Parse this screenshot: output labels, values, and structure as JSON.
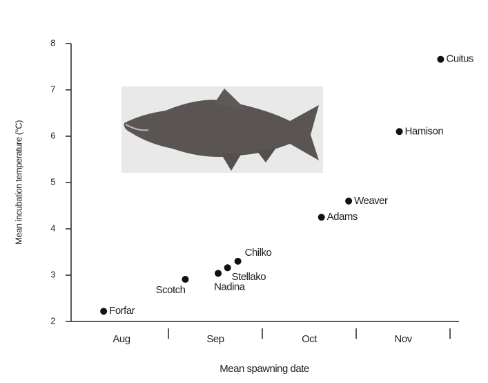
{
  "chart_data": {
    "type": "scatter",
    "xlabel": "Mean spawning date",
    "ylabel": "Mean incubation temperature (°C)",
    "categories": [
      "Aug",
      "Sep",
      "Oct",
      "Nov"
    ],
    "xlim": [
      0,
      4
    ],
    "ylim": [
      2,
      8
    ],
    "yticks": [
      2,
      3,
      4,
      5,
      6,
      7,
      8
    ],
    "color": "#111111",
    "labels": [
      "Forfar",
      "Scotch",
      "Nadina",
      "Stellako",
      "Chilko",
      "Adams",
      "Weaver",
      "Hamison",
      "Cuitus"
    ],
    "x": [
      0.31,
      1.18,
      1.53,
      1.63,
      1.74,
      2.63,
      2.92,
      3.46,
      3.9
    ],
    "y": [
      2.22,
      2.91,
      3.04,
      3.16,
      3.3,
      4.25,
      4.6,
      6.1,
      7.66
    ]
  }
}
